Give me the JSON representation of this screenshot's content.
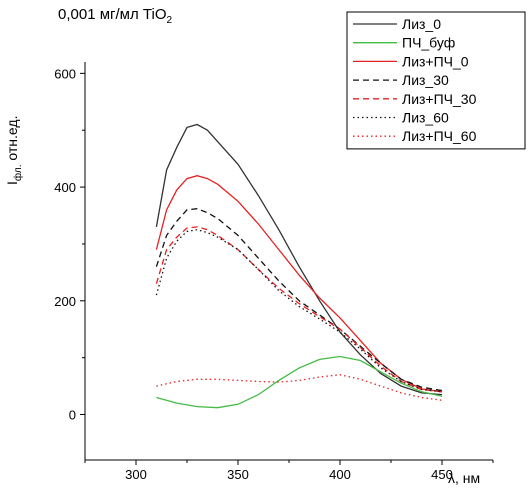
{
  "chart_data": {
    "type": "line",
    "title": "0,001 мг/мл TiO",
    "title_sub": "2",
    "ylabel": "I",
    "ylabel_sub": "фл.",
    "ylabel_rest": " отн.ед.",
    "xlabel": "λ, нм",
    "xlim": [
      275,
      475
    ],
    "ylim": [
      -80,
      620
    ],
    "xticks": [
      "300",
      "350",
      "400",
      "450"
    ],
    "yticks": [
      "0",
      "200",
      "400",
      "600"
    ],
    "legend_position": "top-right",
    "grid": false,
    "series": [
      {
        "name": "Лиз_0",
        "color": "#333333",
        "dash": "solid",
        "x": [
          310,
          315,
          320,
          325,
          330,
          335,
          340,
          350,
          360,
          370,
          380,
          390,
          400,
          410,
          420,
          430,
          440,
          450
        ],
        "y": [
          330,
          430,
          470,
          505,
          510,
          500,
          480,
          440,
          385,
          325,
          260,
          200,
          145,
          105,
          72,
          50,
          38,
          35
        ]
      },
      {
        "name": "ПЧ_буф",
        "color": "#44bb44",
        "dash": "solid",
        "x": [
          310,
          320,
          330,
          340,
          350,
          360,
          370,
          380,
          390,
          400,
          410,
          420,
          430,
          440,
          450
        ],
        "y": [
          30,
          20,
          14,
          12,
          18,
          35,
          60,
          82,
          97,
          102,
          95,
          75,
          55,
          40,
          32
        ]
      },
      {
        "name": "Лиз+ПЧ_0",
        "color": "#e52222",
        "dash": "solid",
        "x": [
          310,
          315,
          320,
          325,
          330,
          335,
          340,
          350,
          360,
          370,
          380,
          390,
          400,
          410,
          420,
          430,
          440,
          450
        ],
        "y": [
          290,
          360,
          395,
          415,
          420,
          415,
          405,
          375,
          335,
          290,
          245,
          205,
          170,
          130,
          90,
          62,
          45,
          40
        ]
      },
      {
        "name": "Лиз_30",
        "color": "#111111",
        "dash": "dashed",
        "x": [
          310,
          315,
          320,
          325,
          330,
          335,
          340,
          350,
          360,
          370,
          380,
          390,
          400,
          410,
          420,
          430,
          440,
          450
        ],
        "y": [
          260,
          315,
          340,
          360,
          362,
          355,
          345,
          315,
          275,
          235,
          200,
          175,
          150,
          120,
          90,
          62,
          48,
          42
        ]
      },
      {
        "name": "Лиз+ПЧ_30",
        "color": "#e52222",
        "dash": "dashed",
        "x": [
          310,
          315,
          320,
          325,
          330,
          335,
          340,
          350,
          360,
          370,
          380,
          390,
          400,
          410,
          420,
          430,
          440,
          450
        ],
        "y": [
          230,
          290,
          312,
          328,
          330,
          325,
          315,
          290,
          255,
          222,
          195,
          172,
          150,
          118,
          85,
          58,
          44,
          40
        ]
      },
      {
        "name": "Лиз_60",
        "color": "#111111",
        "dash": "dotted",
        "x": [
          310,
          315,
          320,
          325,
          330,
          335,
          340,
          350,
          360,
          370,
          380,
          390,
          400,
          410,
          420,
          430,
          440,
          450
        ],
        "y": [
          210,
          275,
          305,
          322,
          325,
          320,
          312,
          290,
          255,
          218,
          190,
          168,
          145,
          115,
          82,
          58,
          44,
          40
        ]
      },
      {
        "name": "Лиз+ПЧ_60",
        "color": "#e52222",
        "dash": "dotted",
        "x": [
          310,
          320,
          330,
          340,
          350,
          360,
          370,
          380,
          390,
          400,
          410,
          420,
          430,
          440,
          450
        ],
        "y": [
          50,
          58,
          62,
          62,
          60,
          58,
          57,
          60,
          66,
          70,
          62,
          50,
          38,
          30,
          25
        ]
      }
    ]
  }
}
